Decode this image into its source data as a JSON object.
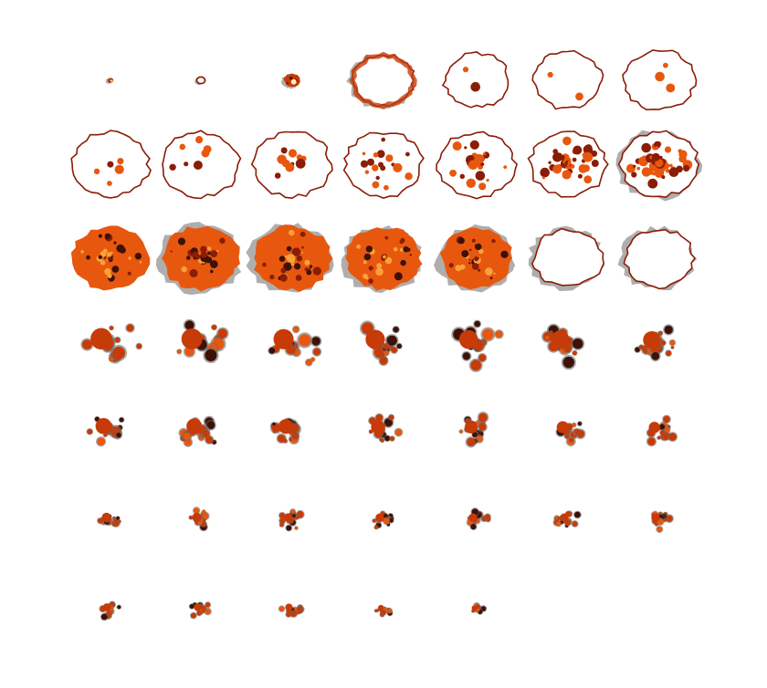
{
  "figure": {
    "rows": 7,
    "cols": 7,
    "panels": 47,
    "background": "#ffffff",
    "colormap": [
      "#ffffff",
      "#f9a23a",
      "#e8570e",
      "#c63b07",
      "#8a1d06",
      "#3c1208",
      "#6b6b6b"
    ],
    "description_free": true
  },
  "panels": [
    {
      "stage": 1,
      "size": 0.05,
      "fill": 0.9,
      "spots": 0.0,
      "frag": 0.0,
      "gray": 0.1
    },
    {
      "stage": 2,
      "size": 0.1,
      "fill": 0.3,
      "spots": 0.0,
      "frag": 0.0,
      "gray": 0.2
    },
    {
      "stage": 3,
      "size": 0.2,
      "fill": 0.6,
      "spots": 0.0,
      "frag": 0.0,
      "gray": 0.8
    },
    {
      "stage": 4,
      "size": 0.75,
      "fill": 0.0,
      "spots": 0.0,
      "frag": 0.0,
      "gray": 0.3
    },
    {
      "stage": 5,
      "size": 0.8,
      "fill": 0.0,
      "spots": 0.02,
      "frag": 0.0,
      "gray": 0.2
    },
    {
      "stage": 6,
      "size": 0.85,
      "fill": 0.0,
      "spots": 0.02,
      "frag": 0.0,
      "gray": 0.2
    },
    {
      "stage": 7,
      "size": 0.88,
      "fill": 0.0,
      "spots": 0.03,
      "frag": 0.0,
      "gray": 0.2
    },
    {
      "stage": 8,
      "size": 0.95,
      "fill": 0.0,
      "spots": 0.06,
      "frag": 0.0,
      "gray": 0.2
    },
    {
      "stage": 9,
      "size": 0.95,
      "fill": 0.0,
      "spots": 0.08,
      "frag": 0.0,
      "gray": 0.2
    },
    {
      "stage": 10,
      "size": 0.95,
      "fill": 0.0,
      "spots": 0.12,
      "frag": 0.0,
      "gray": 0.2
    },
    {
      "stage": 11,
      "size": 0.95,
      "fill": 0.0,
      "spots": 0.2,
      "frag": 0.0,
      "gray": 0.2
    },
    {
      "stage": 12,
      "size": 0.95,
      "fill": 0.0,
      "spots": 0.3,
      "frag": 0.0,
      "gray": 0.2
    },
    {
      "stage": 13,
      "size": 0.95,
      "fill": 0.0,
      "spots": 0.45,
      "frag": 0.0,
      "gray": 0.25
    },
    {
      "stage": 14,
      "size": 0.95,
      "fill": 0.0,
      "spots": 0.6,
      "frag": 0.0,
      "gray": 0.3
    },
    {
      "stage": 15,
      "size": 0.95,
      "fill": 0.9,
      "spots": 0.0,
      "frag": 0.0,
      "gray": 0.2
    },
    {
      "stage": 16,
      "size": 0.95,
      "fill": 0.8,
      "spots": 0.0,
      "frag": 0.0,
      "gray": 0.3
    },
    {
      "stage": 17,
      "size": 0.95,
      "fill": 0.75,
      "spots": 0.0,
      "frag": 0.0,
      "gray": 0.35
    },
    {
      "stage": 18,
      "size": 0.92,
      "fill": 0.7,
      "spots": 0.0,
      "frag": 0.0,
      "gray": 0.4
    },
    {
      "stage": 19,
      "size": 0.88,
      "fill": 0.6,
      "spots": 0.0,
      "frag": 0.0,
      "gray": 0.45
    },
    {
      "stage": 20,
      "size": 0.85,
      "fill": 0.5,
      "spots": 0.0,
      "frag": 0.0,
      "gray": 0.5
    },
    {
      "stage": 21,
      "size": 0.85,
      "fill": 0.45,
      "spots": 0.0,
      "frag": 0.0,
      "gray": 0.55
    },
    {
      "stage": 22,
      "size": 0.8,
      "fill": 0.5,
      "spots": 0.0,
      "frag": 0.2,
      "gray": 0.6
    },
    {
      "stage": 23,
      "size": 0.78,
      "fill": 0.5,
      "spots": 0.0,
      "frag": 0.25,
      "gray": 0.6
    },
    {
      "stage": 24,
      "size": 0.75,
      "fill": 0.45,
      "spots": 0.0,
      "frag": 0.3,
      "gray": 0.65
    },
    {
      "stage": 25,
      "size": 0.72,
      "fill": 0.4,
      "spots": 0.0,
      "frag": 0.35,
      "gray": 0.7
    },
    {
      "stage": 26,
      "size": 0.7,
      "fill": 0.35,
      "spots": 0.0,
      "frag": 0.4,
      "gray": 0.7
    },
    {
      "stage": 27,
      "size": 0.68,
      "fill": 0.3,
      "spots": 0.0,
      "frag": 0.45,
      "gray": 0.75
    },
    {
      "stage": 28,
      "size": 0.65,
      "fill": 0.3,
      "spots": 0.0,
      "frag": 0.5,
      "gray": 0.75
    },
    {
      "stage": 29,
      "size": 0.6,
      "fill": 0.3,
      "spots": 0.0,
      "frag": 0.6,
      "gray": 0.8
    },
    {
      "stage": 30,
      "size": 0.58,
      "fill": 0.3,
      "spots": 0.0,
      "frag": 0.6,
      "gray": 0.8
    },
    {
      "stage": 31,
      "size": 0.55,
      "fill": 0.25,
      "spots": 0.0,
      "frag": 0.65,
      "gray": 0.8
    },
    {
      "stage": 32,
      "size": 0.5,
      "fill": 0.2,
      "spots": 0.0,
      "frag": 0.7,
      "gray": 0.85
    },
    {
      "stage": 33,
      "size": 0.48,
      "fill": 0.2,
      "spots": 0.0,
      "frag": 0.7,
      "gray": 0.85
    },
    {
      "stage": 34,
      "size": 0.45,
      "fill": 0.2,
      "spots": 0.0,
      "frag": 0.75,
      "gray": 0.85
    },
    {
      "stage": 35,
      "size": 0.42,
      "fill": 0.2,
      "spots": 0.0,
      "frag": 0.8,
      "gray": 0.9
    },
    {
      "stage": 36,
      "size": 0.35,
      "fill": 0.2,
      "spots": 0.0,
      "frag": 0.85,
      "gray": 0.9
    },
    {
      "stage": 37,
      "size": 0.35,
      "fill": 0.2,
      "spots": 0.0,
      "frag": 0.85,
      "gray": 0.9
    },
    {
      "stage": 38,
      "size": 0.33,
      "fill": 0.2,
      "spots": 0.0,
      "frag": 0.85,
      "gray": 0.9
    },
    {
      "stage": 39,
      "size": 0.32,
      "fill": 0.2,
      "spots": 0.0,
      "frag": 0.85,
      "gray": 0.9
    },
    {
      "stage": 40,
      "size": 0.32,
      "fill": 0.2,
      "spots": 0.0,
      "frag": 0.85,
      "gray": 0.9
    },
    {
      "stage": 41,
      "size": 0.32,
      "fill": 0.2,
      "spots": 0.0,
      "frag": 0.85,
      "gray": 0.9
    },
    {
      "stage": 42,
      "size": 0.32,
      "fill": 0.2,
      "spots": 0.0,
      "frag": 0.85,
      "gray": 0.9
    },
    {
      "stage": 43,
      "size": 0.3,
      "fill": 0.2,
      "spots": 0.0,
      "frag": 0.9,
      "gray": 0.9
    },
    {
      "stage": 44,
      "size": 0.28,
      "fill": 0.2,
      "spots": 0.0,
      "frag": 0.9,
      "gray": 0.9
    },
    {
      "stage": 45,
      "size": 0.28,
      "fill": 0.2,
      "spots": 0.0,
      "frag": 0.9,
      "gray": 0.9
    },
    {
      "stage": 46,
      "size": 0.22,
      "fill": 0.05,
      "spots": 0.0,
      "frag": 0.95,
      "gray": 0.95
    },
    {
      "stage": 47,
      "size": 0.2,
      "fill": 0.05,
      "spots": 0.0,
      "frag": 0.95,
      "gray": 0.95
    }
  ]
}
